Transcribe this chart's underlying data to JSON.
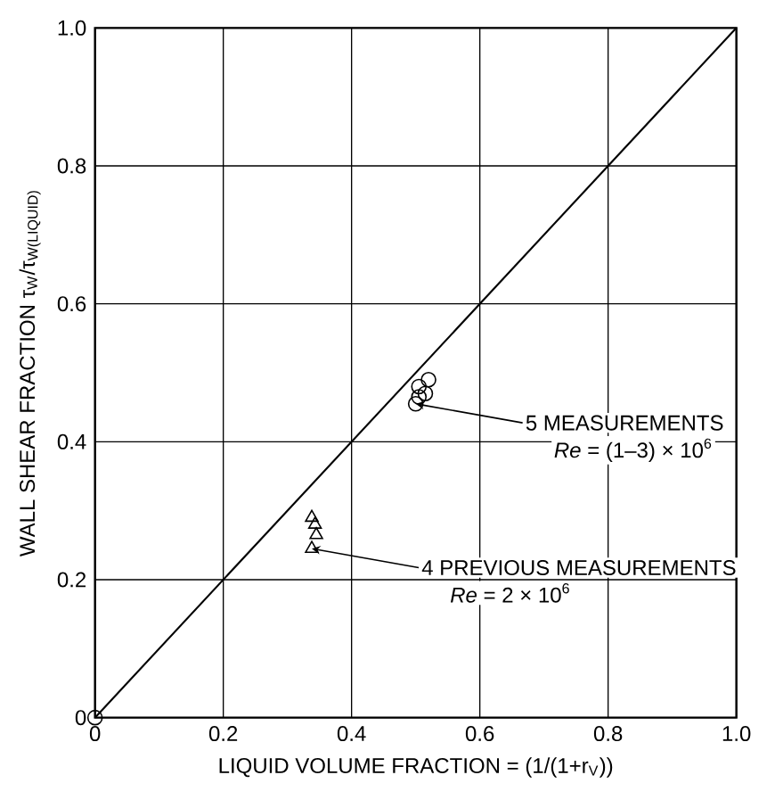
{
  "chart_data": {
    "type": "scatter",
    "xlabel": "LIQUID VOLUME FRACTION = (1/(1+r$_{V}$))",
    "ylabel": "WALL SHEAR FRACTION   τ$_{W}$/τ$_{W(LIQUID)}$",
    "xlim": [
      0,
      1
    ],
    "ylim": [
      0,
      1
    ],
    "xticks": [
      0,
      0.2,
      0.4,
      0.6,
      0.8,
      {
        "value": 1,
        "label": "1.0"
      }
    ],
    "yticks": [
      0,
      0.2,
      0.4,
      0.6,
      0.8,
      {
        "value": 1,
        "label": "1.0"
      }
    ],
    "grid": true,
    "series": [
      {
        "type": "line",
        "color": "#000000",
        "marker": "none",
        "x": [
          0,
          1
        ],
        "values": [
          0,
          1
        ]
      },
      {
        "color": "#000000",
        "marker": "circle",
        "x": [
          0
        ],
        "values": [
          0
        ]
      },
      {
        "color": "#000000",
        "marker": "circle",
        "x": [
          0.52,
          0.505,
          0.515,
          0.505,
          0.5
        ],
        "values": [
          0.49,
          0.48,
          0.47,
          0.465,
          0.455
        ]
      },
      {
        "color": "#000000",
        "marker": "triangle",
        "x": [
          0.338,
          0.343,
          0.345,
          0.338
        ],
        "values": [
          0.29,
          0.28,
          0.265,
          0.245
        ]
      }
    ],
    "annotations": [
      {
        "text": "5 MEASUREMENTS",
        "x": 0.5,
        "y": 0.455
      },
      "*Re* = (1–3) × 10$^{6}$",
      {
        "text": "4 PREVIOUS MEASUREMENTS",
        "x": 0.338,
        "y": 0.245
      },
      "*Re* = 2 × 10$^{6}$"
    ]
  }
}
